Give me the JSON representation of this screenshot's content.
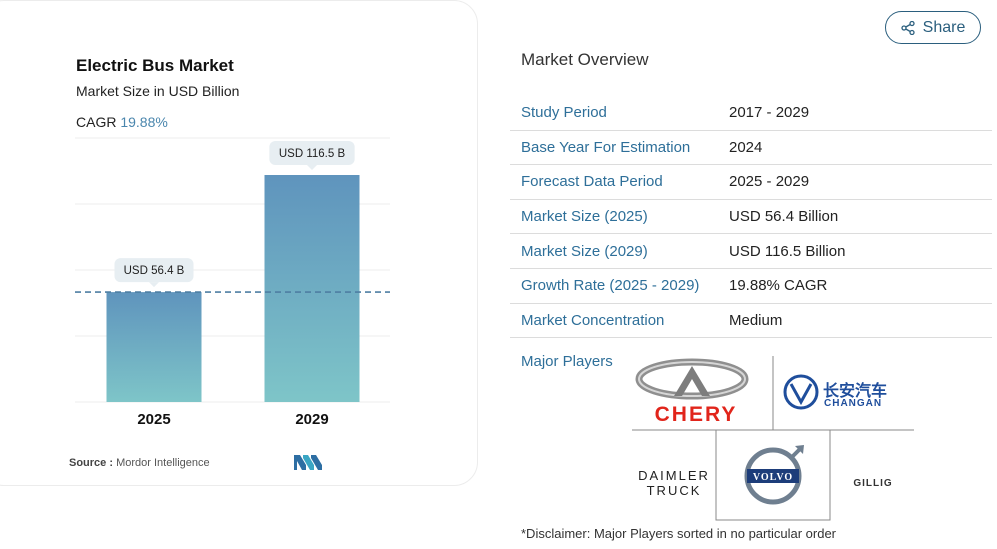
{
  "chart": {
    "title": "Electric Bus Market",
    "subtitle": "Market Size in USD Billion",
    "cagr_label": "CAGR",
    "cagr_value": "19.88%",
    "source_label": "Source :",
    "source_name": "Mordor Intelligence"
  },
  "chart_data": {
    "type": "bar",
    "categories": [
      "2025",
      "2029"
    ],
    "values": [
      56.4,
      116.5
    ],
    "data_labels": [
      "USD 56.4 B",
      "USD 116.5 B"
    ],
    "title": "Electric Bus Market",
    "subtitle": "Market Size in USD Billion",
    "xlabel": "",
    "ylabel": "",
    "ylim": [
      0,
      116.5
    ],
    "grid": true,
    "reference_line": 56.4,
    "colors": {
      "bar_top": "#5f94bd",
      "bar_bottom": "#7ec5c8",
      "reference": "#4e7fa3",
      "label_bg": "#e7eef2"
    }
  },
  "share": {
    "label": "Share"
  },
  "overview": {
    "title": "Market Overview",
    "rows": [
      {
        "label": "Study Period",
        "value": "2017 - 2029"
      },
      {
        "label": "Base Year For Estimation",
        "value": "2024"
      },
      {
        "label": "Forecast Data Period",
        "value": "2025 - 2029"
      },
      {
        "label": "Market Size (2025)",
        "value": "USD 56.4 Billion"
      },
      {
        "label": "Market Size (2029)",
        "value": "USD 116.5 Billion"
      },
      {
        "label": "Growth Rate (2025 - 2029)",
        "value": "19.88% CAGR"
      },
      {
        "label": "Market Concentration",
        "value": "Medium"
      }
    ],
    "players_label": "Major Players",
    "players": {
      "chery": "CHERY",
      "changan_cn": "长安汽车",
      "changan_en": "CHANGAN",
      "daimler_line1": "DAIMLER",
      "daimler_line2": "TRUCK",
      "volvo": "VOLVO",
      "gillig": "GILLIG"
    },
    "disclaimer": "*Disclaimer: Major Players sorted in no particular order"
  },
  "colors": {
    "accent": "#2e6f99",
    "chery_red": "#e1251b",
    "changan_blue": "#1f4e9c"
  }
}
